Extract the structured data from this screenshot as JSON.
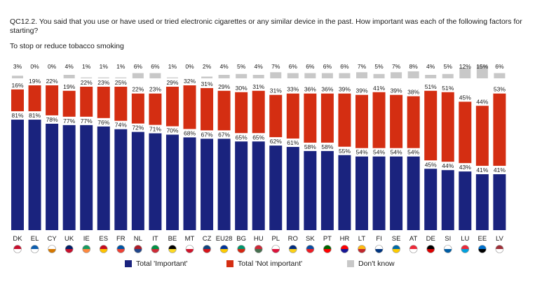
{
  "question": "QC12.2. You said that you use or have used or tried electronic cigarettes or any similar device in the past. How important was each of the following factors for starting?",
  "subtitle": "To stop or reduce tobacco smoking",
  "legend": [
    {
      "label": "Total 'Important'",
      "color": "#1a237e"
    },
    {
      "label": "Total 'Not important'",
      "color": "#d42e12"
    },
    {
      "label": "Don't know",
      "color": "#c8c8c8"
    }
  ],
  "chart_data": {
    "type": "bar",
    "stacked": true,
    "categories": [
      "DK",
      "EL",
      "CY",
      "UK",
      "IE",
      "ES",
      "FR",
      "NL",
      "IT",
      "BE",
      "MT",
      "CZ",
      "EU28",
      "BG",
      "HU",
      "PL",
      "RO",
      "SK",
      "PT",
      "HR",
      "LT",
      "FI",
      "SE",
      "AT",
      "DE",
      "SI",
      "LU",
      "EE",
      "LV"
    ],
    "series": [
      {
        "name": "Total 'Important'",
        "color": "#1a237e",
        "values": [
          81,
          81,
          78,
          77,
          77,
          76,
          74,
          72,
          71,
          70,
          68,
          67,
          67,
          65,
          65,
          62,
          61,
          58,
          58,
          55,
          54,
          54,
          54,
          54,
          45,
          44,
          43,
          41,
          41
        ]
      },
      {
        "name": "Total 'Not important'",
        "color": "#d42e12",
        "values": [
          16,
          19,
          22,
          19,
          22,
          23,
          25,
          22,
          23,
          29,
          32,
          31,
          29,
          30,
          31,
          31,
          33,
          36,
          36,
          39,
          39,
          41,
          39,
          38,
          51,
          51,
          45,
          44,
          53
        ]
      },
      {
        "name": "Don't know",
        "color": "#c8c8c8",
        "values": [
          3,
          0,
          0,
          4,
          1,
          1,
          1,
          6,
          6,
          1,
          0,
          2,
          4,
          5,
          4,
          7,
          6,
          6,
          6,
          6,
          7,
          5,
          7,
          8,
          4,
          5,
          12,
          15,
          6
        ]
      }
    ],
    "flags": {
      "DK": [
        "#c8102e",
        "#ffffff"
      ],
      "EL": [
        "#0d5eaf",
        "#ffffff"
      ],
      "CY": [
        "#ffffff",
        "#d57800"
      ],
      "UK": [
        "#012169",
        "#c8102e"
      ],
      "IE": [
        "#169b62",
        "#ff883e"
      ],
      "ES": [
        "#c60b1e",
        "#ffc400"
      ],
      "FR": [
        "#0055a4",
        "#ef4135"
      ],
      "NL": [
        "#ae1c28",
        "#21468b"
      ],
      "IT": [
        "#009246",
        "#ce2b37"
      ],
      "BE": [
        "#000000",
        "#fdda24"
      ],
      "MT": [
        "#ffffff",
        "#cf142b"
      ],
      "CZ": [
        "#11457e",
        "#d7141a"
      ],
      "EU28": [
        "#003399",
        "#ffcc00"
      ],
      "BG": [
        "#00966e",
        "#d62612"
      ],
      "HU": [
        "#ce2939",
        "#477050"
      ],
      "PL": [
        "#ffffff",
        "#dc143c"
      ],
      "RO": [
        "#002b7f",
        "#fcd116"
      ],
      "SK": [
        "#0b4ea2",
        "#ee1c25"
      ],
      "PT": [
        "#006600",
        "#ff0000"
      ],
      "HR": [
        "#ff0000",
        "#171796"
      ],
      "LT": [
        "#fdb913",
        "#c1272d"
      ],
      "FI": [
        "#ffffff",
        "#003580"
      ],
      "SE": [
        "#006aa7",
        "#fecc00"
      ],
      "AT": [
        "#ed2939",
        "#ffffff"
      ],
      "DE": [
        "#000000",
        "#dd0000"
      ],
      "SI": [
        "#ffffff",
        "#005da4"
      ],
      "LU": [
        "#ed2939",
        "#00a1de"
      ],
      "EE": [
        "#0072ce",
        "#000000"
      ],
      "LV": [
        "#9e3039",
        "#ffffff"
      ]
    }
  }
}
